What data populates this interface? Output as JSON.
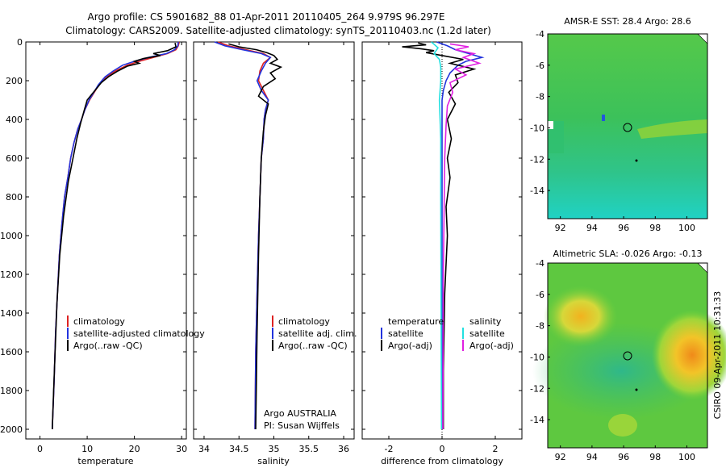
{
  "header": {
    "line1": "Argo profile: CS 5901682_88 01-Apr-2011 20110405_264 9.979S 96.297E",
    "line2": "Climatology: CARS2009. Satellite-adjusted climatology: synTS_20110403.nc (1.2d later)"
  },
  "colors": {
    "clim": "#dd2222",
    "sat": "#2233dd",
    "argo": "#000000",
    "sat_diff_s": "#22e0e0",
    "argo_diff_s": "#e020e0"
  },
  "chart_data": [
    {
      "type": "line",
      "id": "temperature",
      "xlabel": "temperature",
      "xlim": [
        -3,
        31
      ],
      "ylim": [
        2050,
        0
      ],
      "xticks": [
        0,
        10,
        20,
        30
      ],
      "yticks": [
        0,
        200,
        400,
        600,
        800,
        1000,
        1200,
        1400,
        1600,
        1800,
        2000
      ],
      "series": [
        {
          "name": "climatology",
          "color": "#dd2222",
          "x": [
            29.5,
            29.3,
            28.8,
            27.0,
            24.0,
            21.0,
            18.5,
            16.0,
            14.0,
            12.5,
            11.5,
            10.5,
            9.5,
            8.8,
            8.0,
            7.2,
            6.5,
            5.9,
            5.2,
            4.6,
            4.1,
            3.7,
            3.3,
            3.0,
            2.6
          ],
          "y": [
            0,
            20,
            40,
            60,
            80,
            100,
            120,
            150,
            180,
            220,
            260,
            300,
            350,
            400,
            450,
            520,
            600,
            700,
            800,
            950,
            1100,
            1300,
            1500,
            1750,
            2000
          ]
        },
        {
          "name": "satellite-adjusted climatology",
          "color": "#2233dd",
          "x": [
            29.3,
            29.2,
            28.5,
            26.8,
            23.0,
            20.0,
            17.5,
            15.5,
            13.8,
            12.4,
            11.4,
            10.4,
            9.5,
            8.8,
            8.0,
            7.2,
            6.5,
            5.9,
            5.2,
            4.6,
            4.1,
            3.7,
            3.3,
            3.0,
            2.6
          ],
          "y": [
            0,
            20,
            40,
            60,
            80,
            100,
            120,
            150,
            180,
            220,
            260,
            300,
            350,
            400,
            450,
            520,
            600,
            700,
            800,
            950,
            1100,
            1300,
            1500,
            1750,
            2000
          ]
        },
        {
          "name": "Argo(..raw -QC)",
          "color": "#000000",
          "x": [
            28.6,
            28.8,
            27.0,
            24.0,
            25.5,
            22.0,
            20.0,
            21.0,
            18.5,
            16.5,
            14.5,
            13.0,
            12.0,
            11.0,
            10.0,
            9.4,
            8.6,
            7.8,
            7.0,
            6.0,
            5.0,
            4.2,
            3.6,
            3.2,
            2.9,
            2.6
          ],
          "y": [
            5,
            25,
            45,
            60,
            70,
            85,
            100,
            110,
            125,
            150,
            180,
            210,
            240,
            270,
            300,
            350,
            420,
            500,
            600,
            720,
            900,
            1100,
            1350,
            1600,
            1800,
            2000
          ]
        }
      ],
      "legend": [
        "climatology",
        "satellite-adjusted climatology",
        "Argo(..raw -QC)"
      ]
    },
    {
      "type": "line",
      "id": "salinity",
      "xlabel": "salinity",
      "xlim": [
        33.85,
        36.15
      ],
      "ylim": [
        2050,
        0
      ],
      "xticks": [
        34,
        34.5,
        35,
        35.5,
        36
      ],
      "xtick_labels": [
        "34",
        "34.5",
        "35",
        "35.5",
        "36"
      ],
      "series": [
        {
          "name": "climatology",
          "color": "#dd2222",
          "x": [
            34.2,
            34.35,
            34.6,
            34.85,
            34.95,
            34.85,
            34.8,
            34.78,
            34.85,
            34.92,
            34.88,
            34.86,
            34.85,
            34.82,
            34.8,
            34.78,
            34.76,
            34.74,
            34.73
          ],
          "y": [
            0,
            20,
            40,
            60,
            80,
            110,
            150,
            200,
            250,
            300,
            350,
            400,
            500,
            600,
            800,
            1000,
            1300,
            1600,
            2000
          ]
        },
        {
          "name": "satellite adj. clim.",
          "color": "#2233dd",
          "x": [
            34.15,
            34.3,
            34.55,
            34.82,
            34.95,
            34.88,
            34.82,
            34.76,
            34.82,
            34.92,
            34.88,
            34.86,
            34.85,
            34.82,
            34.8,
            34.78,
            34.76,
            34.74,
            34.73
          ],
          "y": [
            0,
            20,
            40,
            60,
            80,
            110,
            150,
            200,
            250,
            300,
            350,
            400,
            500,
            600,
            800,
            1000,
            1300,
            1600,
            2000
          ]
        },
        {
          "name": "Argo(..raw -QC)",
          "color": "#000000",
          "x": [
            34.35,
            34.5,
            34.75,
            34.9,
            35.0,
            35.05,
            34.95,
            35.1,
            34.95,
            35.02,
            34.85,
            34.78,
            34.92,
            34.88,
            34.85,
            34.82,
            34.8,
            34.78,
            34.76,
            34.74
          ],
          "y": [
            10,
            25,
            40,
            55,
            70,
            90,
            110,
            130,
            160,
            190,
            230,
            280,
            320,
            380,
            460,
            600,
            800,
            1100,
            1500,
            2000
          ]
        }
      ],
      "legend": [
        "climatology",
        "satellite adj. clim.",
        "Argo(..raw -QC)"
      ],
      "annotation": [
        "Argo AUSTRALIA",
        "PI: Susan Wijffels"
      ]
    },
    {
      "type": "line",
      "id": "difference",
      "xlabel": "difference from climatology",
      "xlim": [
        -3,
        3
      ],
      "ylim": [
        2050,
        0
      ],
      "xticks": [
        -2,
        0,
        2
      ],
      "series": [
        {
          "name": "temperature satellite",
          "color": "#2233dd",
          "x": [
            -0.2,
            0.2,
            0.5,
            1.0,
            1.5,
            0.9,
            0.6,
            0.3,
            0.15,
            0.05,
            0.0,
            0.0,
            0.0,
            0.0
          ],
          "y": [
            0,
            20,
            40,
            60,
            80,
            100,
            120,
            160,
            200,
            250,
            300,
            600,
            1200,
            2000
          ]
        },
        {
          "name": "temperature Argo(-adj)",
          "color": "#000000",
          "x": [
            -0.9,
            -0.6,
            -1.5,
            -0.8,
            -0.3,
            -0.6,
            0.0,
            0.8,
            0.3,
            1.2,
            0.5,
            0.6,
            0.25,
            0.5,
            0.2,
            0.35,
            0.2,
            0.3,
            0.15,
            0.2,
            0.1,
            0.05,
            0.05
          ],
          "y": [
            5,
            15,
            25,
            35,
            45,
            55,
            70,
            90,
            110,
            140,
            170,
            210,
            260,
            320,
            400,
            500,
            600,
            700,
            850,
            1000,
            1300,
            1700,
            2000
          ]
        },
        {
          "name": "salinity satellite",
          "color": "#22e0e0",
          "x": [
            -0.4,
            -0.15,
            -0.3,
            -0.1,
            -0.05,
            -0.05,
            -0.1,
            -0.05,
            -0.05,
            -0.04,
            -0.03,
            -0.02
          ],
          "y": [
            0,
            30,
            60,
            90,
            130,
            200,
            300,
            500,
            800,
            1200,
            1600,
            2000
          ]
        },
        {
          "name": "salinity Argo(-adj)",
          "color": "#e020e0",
          "x": [
            0.3,
            1.0,
            0.5,
            1.2,
            0.8,
            1.4,
            0.5,
            0.9,
            0.3,
            0.4,
            0.2,
            0.15,
            0.1,
            0.08,
            0.05,
            0.04,
            0.03
          ],
          "y": [
            10,
            25,
            40,
            60,
            80,
            110,
            140,
            170,
            210,
            260,
            330,
            430,
            600,
            850,
            1200,
            1600,
            2000
          ]
        }
      ],
      "legend_left": [
        "temperature",
        "satellite",
        "Argo(-adj)"
      ],
      "legend_right": [
        "salinity",
        "satellite",
        "Argo(-adj)"
      ]
    }
  ],
  "maps": [
    {
      "title": "AMSR-E SST: 28.4 Argo: 28.6",
      "xticks": [
        92,
        94,
        96,
        98,
        100
      ],
      "yticks": [
        -4,
        -6,
        -8,
        -10,
        -12,
        -14
      ],
      "argo_marker": "circle"
    },
    {
      "title": "Altimetric SLA: -0.026 Argo: -0.13",
      "xticks": [
        92,
        94,
        96,
        98,
        100
      ],
      "yticks": [
        -4,
        -6,
        -8,
        -10,
        -12,
        -14
      ],
      "argo_marker": "circle"
    }
  ],
  "footer": {
    "credit": "CSIRO 09-Apr-2011 10:31:33"
  }
}
